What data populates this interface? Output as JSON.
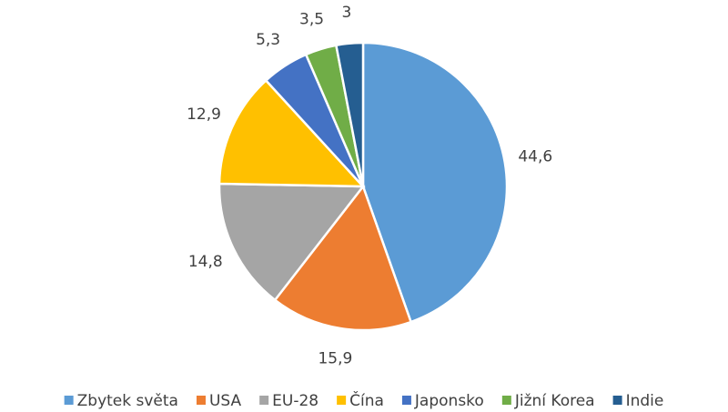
{
  "chart_data": {
    "type": "pie",
    "categories": [
      "Zbytek světa",
      "USA",
      "EU-28",
      "Čína",
      "Japonsko",
      "Jižní Korea",
      "Indie"
    ],
    "values": [
      44.6,
      15.9,
      14.8,
      12.9,
      5.3,
      3.5,
      3
    ],
    "value_labels": [
      "44,6",
      "15,9",
      "14,8",
      "12,9",
      "5,3",
      "3,5",
      "3"
    ],
    "colors": [
      "#5b9bd5",
      "#ed7d31",
      "#a5a5a5",
      "#ffc000",
      "#4472c4",
      "#70ad47",
      "#255e91"
    ],
    "legend": "bottom"
  }
}
